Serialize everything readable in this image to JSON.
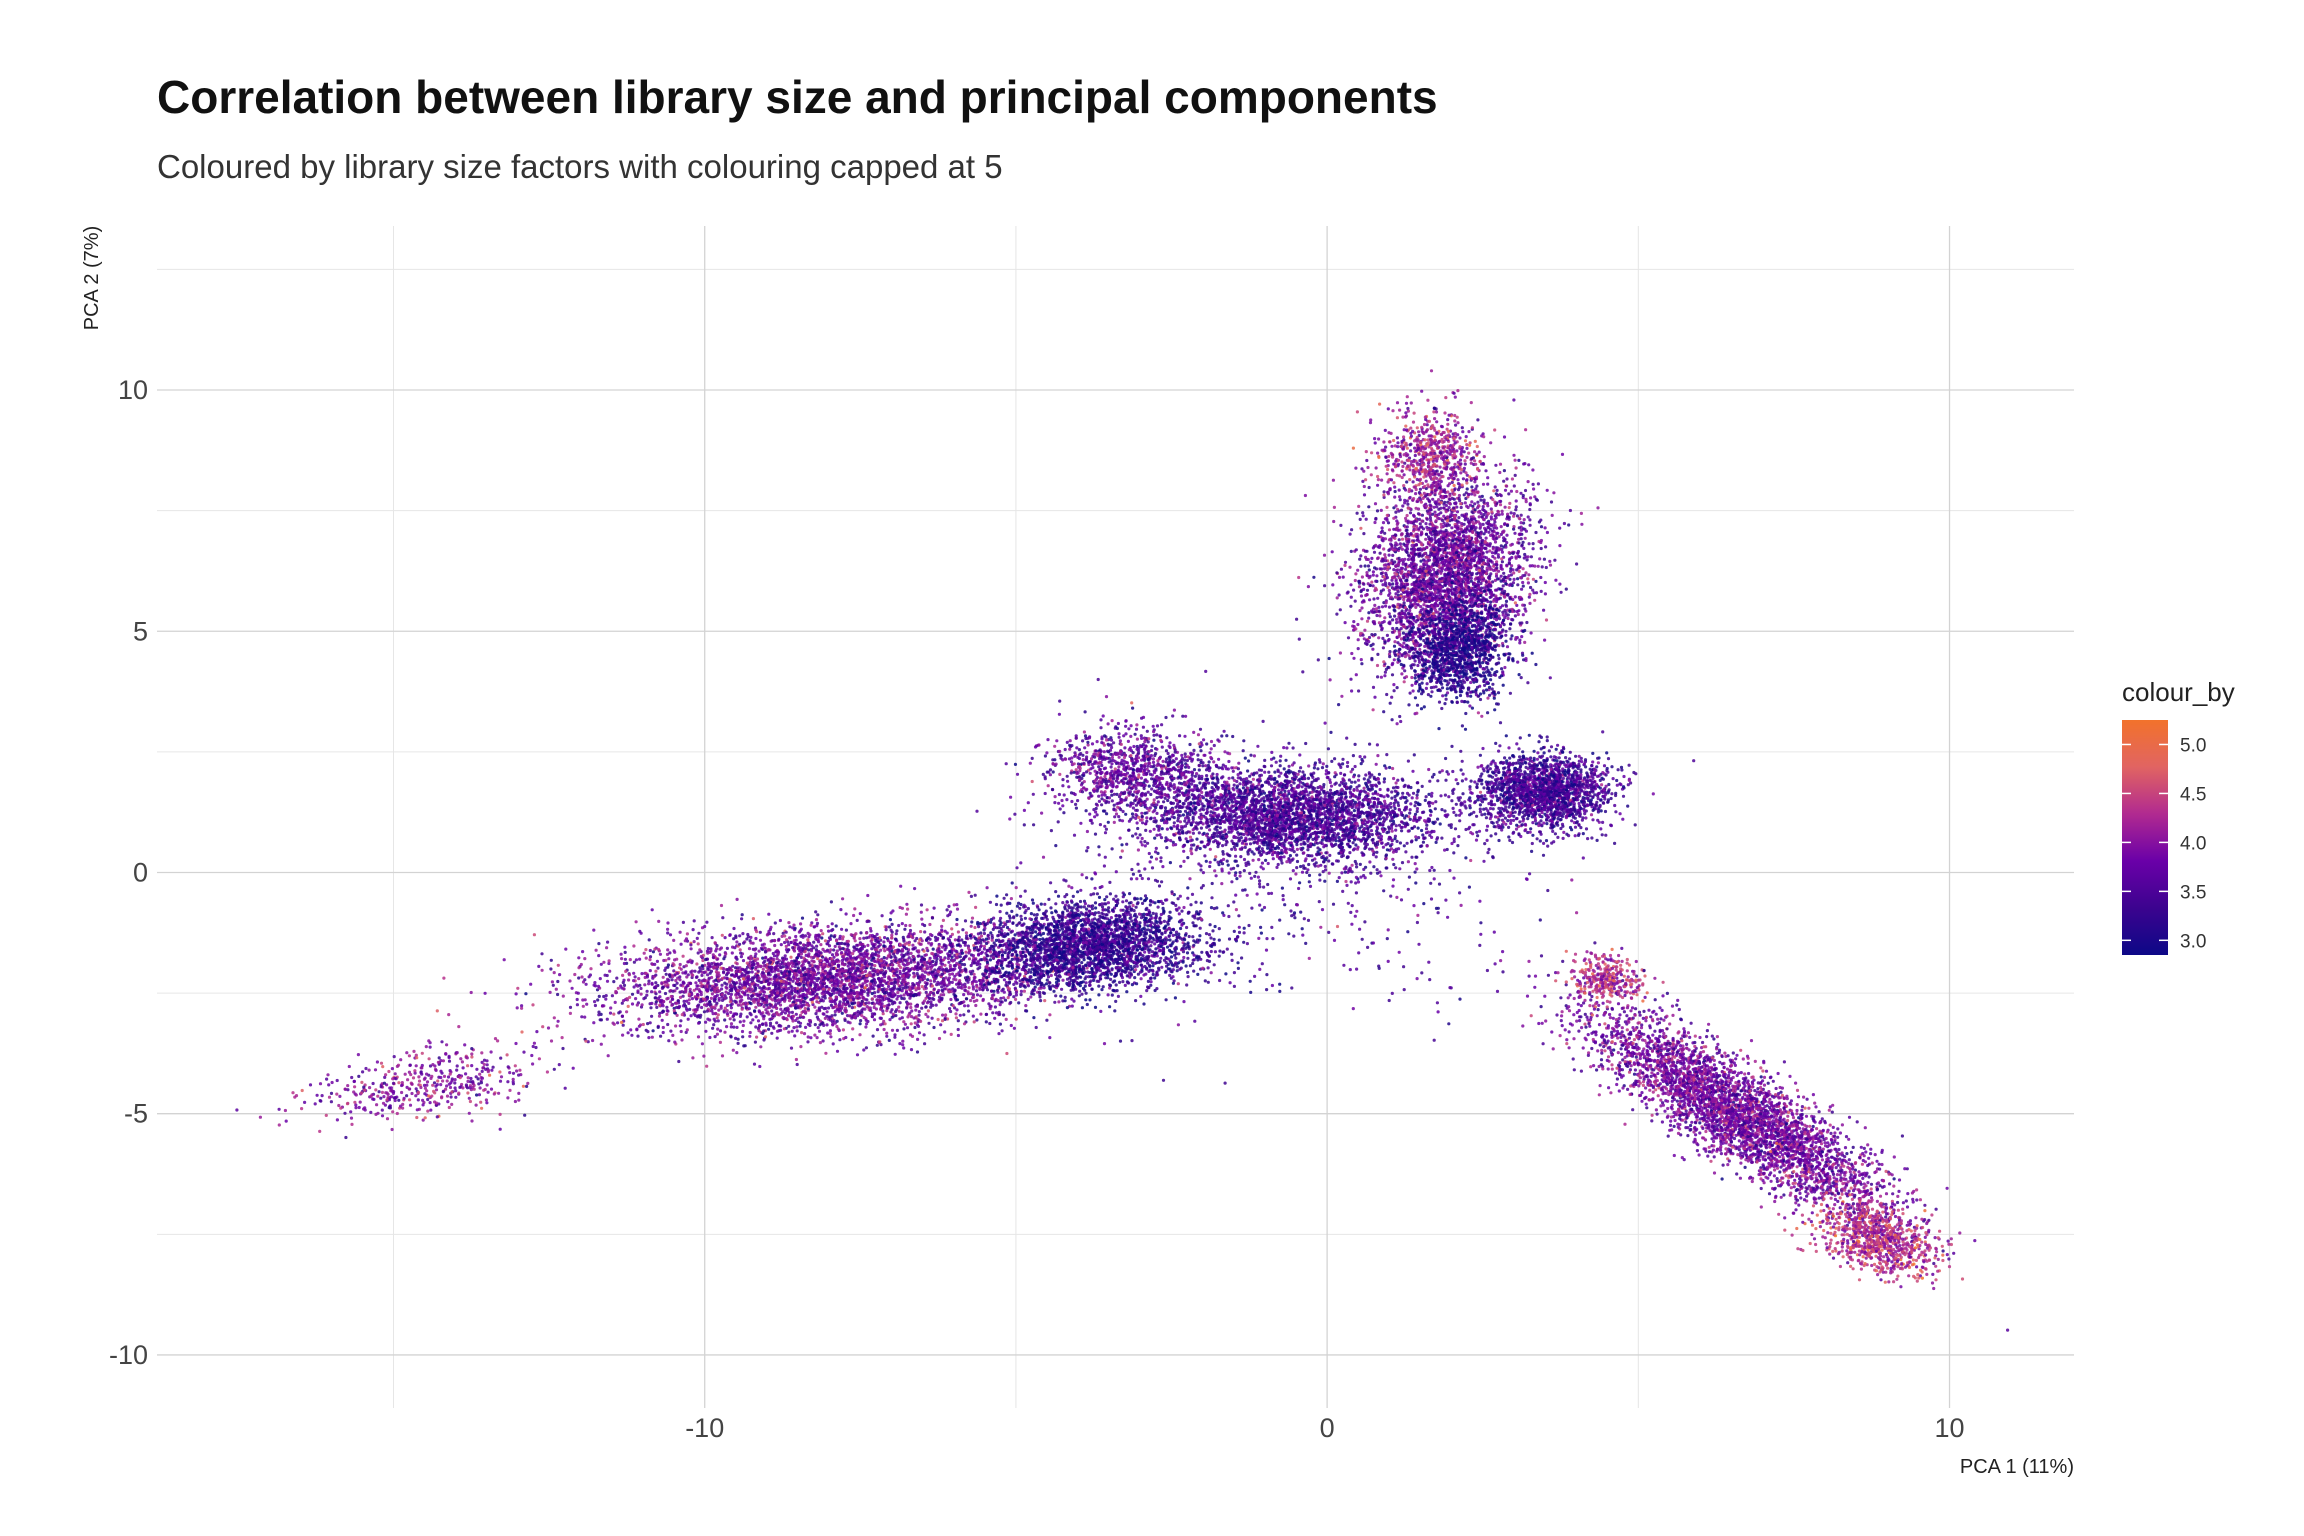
{
  "chart_data": {
    "type": "scatter",
    "title": "Correlation between library size and principal components",
    "subtitle": "Coloured by library size factors with colouring capped at 5",
    "xlabel": "PCA 1 (11%)",
    "ylabel": "PCA 2 (7%)",
    "xlim": [
      -18.8,
      12.0
    ],
    "ylim": [
      -11.1,
      13.4
    ],
    "x_ticks": [
      -10,
      0,
      10
    ],
    "y_ticks": [
      -10,
      -5,
      0,
      5,
      10
    ],
    "x_tick_labels": [
      "-10",
      "0",
      "10"
    ],
    "y_tick_labels": [
      "-10",
      "-5",
      "0",
      "5",
      "10"
    ],
    "grid": true,
    "color_scale": {
      "name": "colour_by",
      "min": 2.85,
      "max": 5.25,
      "ticks": [
        3.0,
        3.5,
        4.0,
        4.5,
        5.0
      ],
      "tick_labels": [
        "3.0",
        "3.5",
        "4.0",
        "4.5",
        "5.0"
      ],
      "colors": [
        "#0d0887",
        "#3c038f",
        "#6a00a8",
        "#b12a90",
        "#e16462",
        "#f2722b"
      ],
      "legend_position": "right"
    },
    "clusters": [
      {
        "center": [
          -8.0,
          -2.2
        ],
        "spread": [
          3.6,
          1.1
        ],
        "rotation": 0.08,
        "n": 4200,
        "colour_by": 3.8
      },
      {
        "center": [
          -3.8,
          -1.5
        ],
        "spread": [
          1.8,
          0.9
        ],
        "rotation": 0.12,
        "n": 2600,
        "colour_by": 3.25
      },
      {
        "center": [
          -14.5,
          -4.4
        ],
        "spread": [
          1.8,
          0.7
        ],
        "rotation": 0.15,
        "n": 450,
        "colour_by": 3.95
      },
      {
        "center": [
          -0.6,
          1.2
        ],
        "spread": [
          2.4,
          1.0
        ],
        "rotation": -0.05,
        "n": 3200,
        "colour_by": 3.45
      },
      {
        "center": [
          -3.2,
          2.1
        ],
        "spread": [
          1.4,
          0.9
        ],
        "rotation": 0.0,
        "n": 900,
        "colour_by": 3.7
      },
      {
        "center": [
          1.9,
          6.2
        ],
        "spread": [
          1.3,
          2.0
        ],
        "rotation": -0.2,
        "n": 3400,
        "colour_by": 3.75
      },
      {
        "center": [
          2.1,
          4.6
        ],
        "spread": [
          0.8,
          1.1
        ],
        "rotation": -0.2,
        "n": 1100,
        "colour_by": 3.1
      },
      {
        "center": [
          1.6,
          8.6
        ],
        "spread": [
          0.8,
          1.0
        ],
        "rotation": 0.0,
        "n": 600,
        "colour_by": 4.15
      },
      {
        "center": [
          3.5,
          1.7
        ],
        "spread": [
          1.1,
          0.8
        ],
        "rotation": 0.0,
        "n": 1800,
        "colour_by": 3.4
      },
      {
        "center": [
          6.6,
          -5.0
        ],
        "spread": [
          3.0,
          0.8
        ],
        "rotation": -0.72,
        "n": 3800,
        "colour_by": 3.85
      },
      {
        "center": [
          8.8,
          -7.6
        ],
        "spread": [
          1.0,
          0.6
        ],
        "rotation": -0.6,
        "n": 800,
        "colour_by": 4.35
      },
      {
        "center": [
          4.5,
          -2.2
        ],
        "spread": [
          0.6,
          0.5
        ],
        "rotation": 0.0,
        "n": 300,
        "colour_by": 4.3
      },
      {
        "center": [
          -1.0,
          0.0
        ],
        "spread": [
          4.0,
          3.0
        ],
        "rotation": 0.0,
        "n": 500,
        "colour_by": 3.5
      }
    ]
  }
}
